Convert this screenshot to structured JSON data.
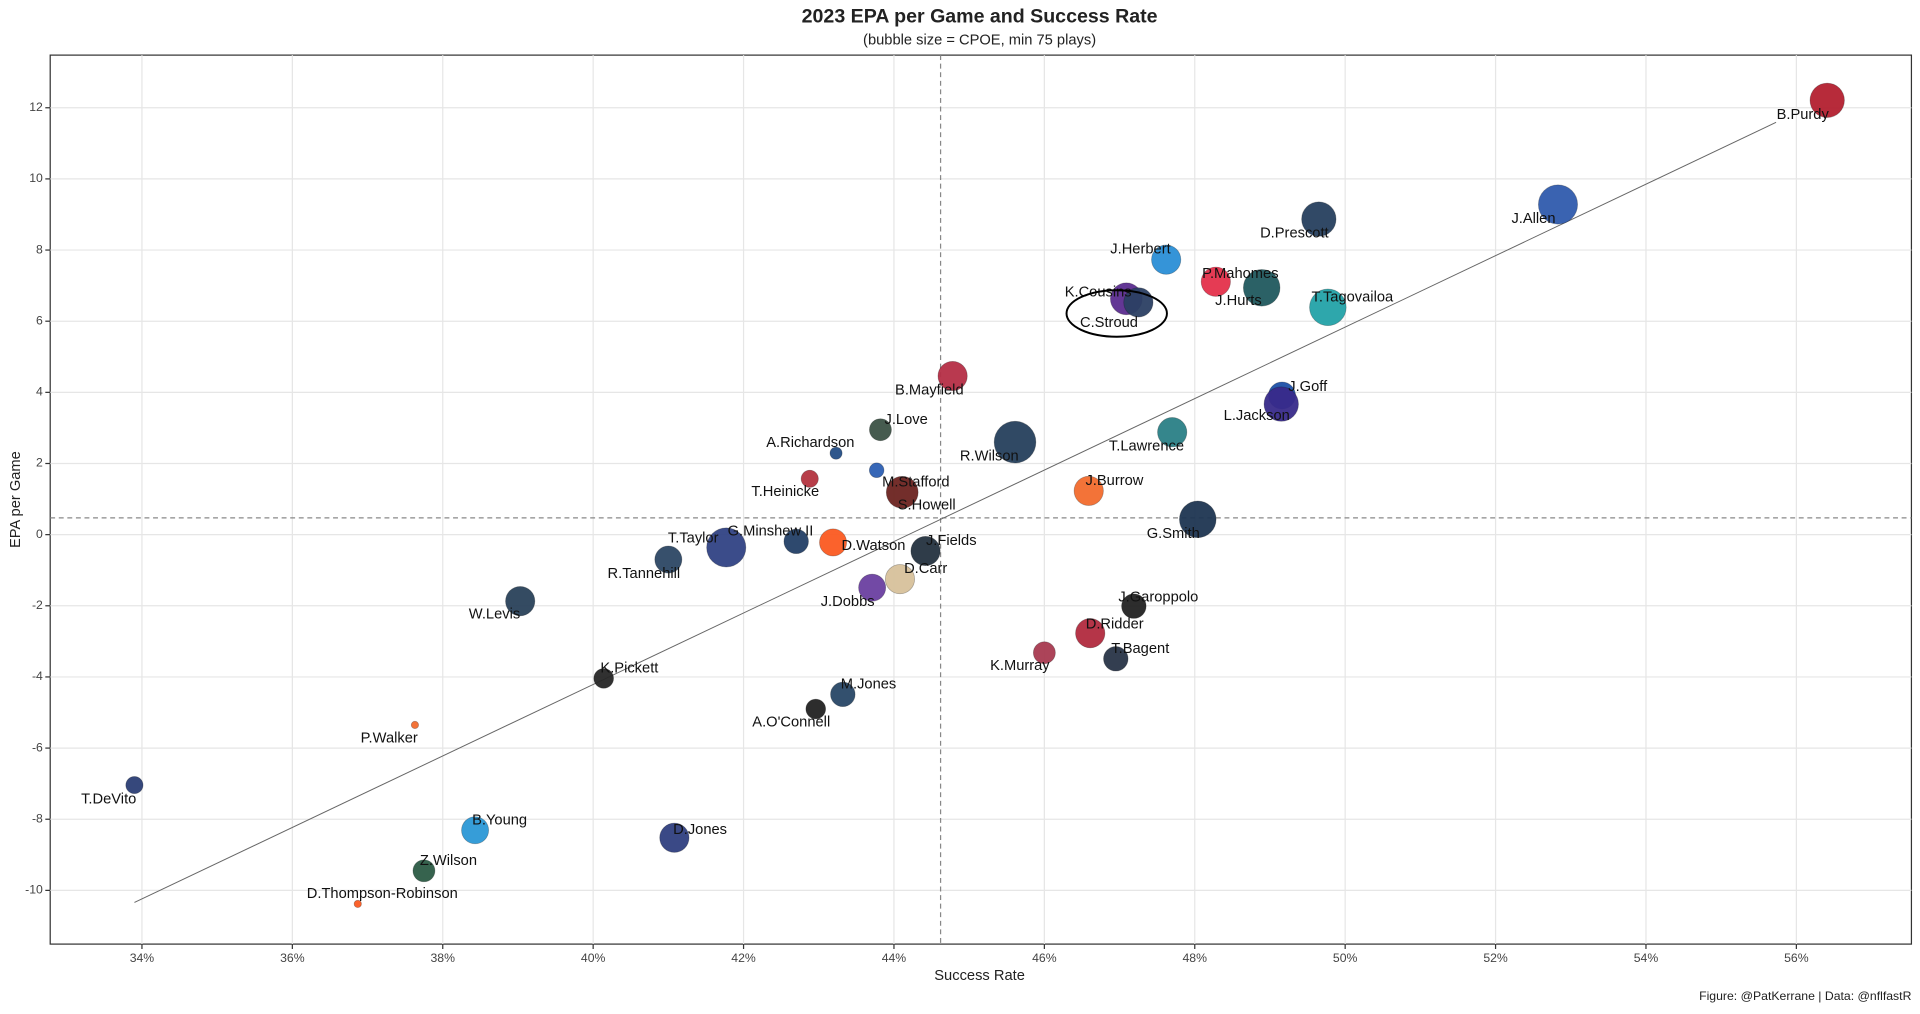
{
  "chart_data": {
    "type": "bubble",
    "title": "2023 EPA per Game and Success Rate",
    "subtitle": "(bubble size = CPOE, min 75 plays)",
    "x_label": "Success Rate",
    "y_label": "EPA per Game",
    "caption": "Figure: @PatKerrane | Data: @nflfastR",
    "xlim": [
      32.78,
      57.53
    ],
    "ylim": [
      -11.51,
      13.48
    ],
    "xticks": [
      {
        "value": 34,
        "label": "34%"
      },
      {
        "value": 36,
        "label": "36%"
      },
      {
        "value": 38,
        "label": "38%"
      },
      {
        "value": 40,
        "label": "40%"
      },
      {
        "value": 42,
        "label": "42%"
      },
      {
        "value": 44,
        "label": "44%"
      },
      {
        "value": 46,
        "label": "46%"
      },
      {
        "value": 48,
        "label": "48%"
      },
      {
        "value": 50,
        "label": "50%"
      },
      {
        "value": 52,
        "label": "52%"
      },
      {
        "value": 54,
        "label": "54%"
      },
      {
        "value": 56,
        "label": "56%"
      }
    ],
    "yticks": [
      -10,
      -8,
      -6,
      -4,
      -2,
      0,
      2,
      4,
      6,
      8,
      10,
      12
    ],
    "grid": true,
    "vline": 44.62,
    "hline": 0.47,
    "trend_line": {
      "x": [
        33.9,
        55.73
      ],
      "y": [
        -10.34,
        11.59
      ]
    },
    "labels": [
      "B.Purdy",
      "J.Allen",
      "D.Prescott",
      "J.Herbert",
      "P.Mahomes",
      "K.Cousins",
      "C.Stroud",
      "J.Hurts",
      "T.Tagovailoa",
      "B.Mayfield",
      "J.Goff",
      "L.Jackson",
      "J.Love",
      "T.Lawrence",
      "R.Wilson",
      "A.Richardson",
      "M.Stafford",
      "T.Heinicke",
      "S.Howell",
      "J.Burrow",
      "G.Smith",
      "G.Minshew II",
      "D.Watson",
      "T.Taylor",
      "J.Fields",
      "R.Tannehill",
      "D.Carr",
      "J.Dobbs",
      "W.Levis",
      "J.Garoppolo",
      "D.Ridder",
      "K.Murray",
      "T.Bagent",
      "K.Pickett",
      "M.Jones",
      "A.O'Connell",
      "P.Walker",
      "T.DeVito",
      "B.Young",
      "D.Jones",
      "Z.Wilson",
      "D.Thompson-Robinson"
    ],
    "x": [
      56.41,
      52.83,
      49.65,
      47.62,
      48.28,
      47.09,
      47.25,
      48.89,
      49.77,
      44.78,
      49.16,
      49.15,
      43.82,
      47.7,
      45.61,
      43.23,
      43.77,
      42.88,
      44.11,
      46.59,
      48.04,
      42.7,
      43.19,
      41.77,
      44.42,
      41.0,
      44.08,
      43.71,
      39.03,
      47.19,
      46.61,
      46.0,
      46.95,
      40.14,
      43.32,
      42.96,
      37.63,
      33.9,
      38.43,
      41.08,
      37.75,
      36.87
    ],
    "y": [
      12.21,
      9.28,
      8.87,
      7.73,
      7.11,
      6.63,
      6.53,
      6.94,
      6.39,
      4.46,
      3.91,
      3.67,
      2.95,
      2.88,
      2.6,
      2.29,
      1.81,
      1.57,
      1.19,
      1.23,
      0.43,
      -0.19,
      -0.22,
      -0.36,
      -0.46,
      -0.7,
      -1.25,
      -1.49,
      -1.87,
      -2.01,
      -2.77,
      -3.32,
      -3.49,
      -4.04,
      -4.49,
      -4.9,
      -5.35,
      -7.04,
      -8.31,
      -8.52,
      -9.45,
      -10.38
    ],
    "sizes": [
      6.0,
      7.5,
      6.0,
      4.4,
      4.4,
      5.2,
      4.4,
      6.7,
      6.7,
      4.4,
      3.7,
      6.0,
      2.1,
      4.4,
      8.3,
      -1.0,
      -0.2,
      0.6,
      5.2,
      4.4,
      6.7,
      2.9,
      3.7,
      7.5,
      4.4,
      3.7,
      4.4,
      3.7,
      4.4,
      2.9,
      4.4,
      2.1,
      2.9,
      1.4,
      2.9,
      1.4,
      -2.5,
      0.6,
      3.7,
      4.4,
      2.1,
      -2.5
    ],
    "colors": [
      "#b3202f",
      "#2f5bad",
      "#263f5e",
      "#2a8ed6",
      "#e4304b",
      "#5b2c8f",
      "#2b3f63",
      "#20585e",
      "#23a2a8",
      "#b52e46",
      "#1c50a8",
      "#382a8a",
      "#3c5246",
      "#2a7f86",
      "#253f5c",
      "#244e86",
      "#2c5fb3",
      "#b3343f",
      "#6b2320",
      "#f26b2d",
      "#1e3551",
      "#233f66",
      "#fb5a21",
      "#304284",
      "#24313f",
      "#2c4764",
      "#d7c19b",
      "#6a3fa0",
      "#29415a",
      "#222222",
      "#b12a3e",
      "#a83a50",
      "#283447",
      "#262626",
      "#284766",
      "#222222",
      "#f26b2d",
      "#2b3e75",
      "#2b98d6",
      "#2f3f80",
      "#2b5b44",
      "#fb5a21"
    ]
  }
}
